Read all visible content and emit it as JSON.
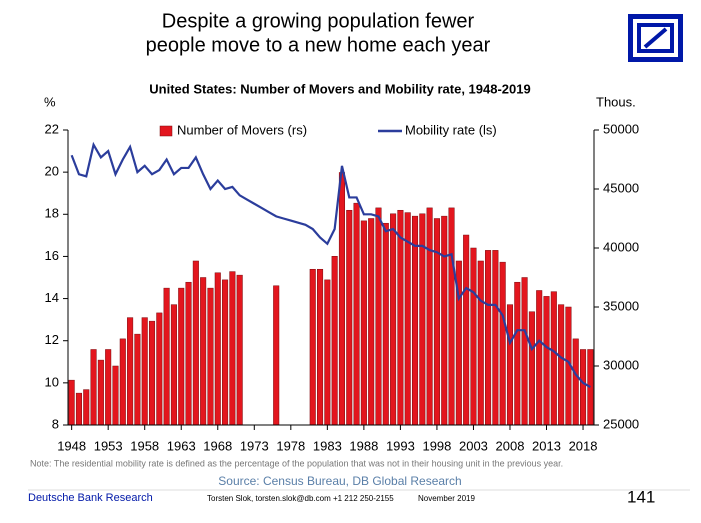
{
  "title_lines": [
    "Despite a growing population fewer",
    "people move to a new home each year"
  ],
  "chart_data": {
    "type": "combo",
    "title": "United States: Number of Movers and Mobility rate, 1948-2019",
    "y_label": "%",
    "y2_label": "Thous.",
    "x": [
      1948,
      1949,
      1950,
      1951,
      1952,
      1953,
      1954,
      1955,
      1956,
      1957,
      1958,
      1959,
      1960,
      1961,
      1962,
      1963,
      1964,
      1965,
      1966,
      1967,
      1968,
      1969,
      1970,
      1971,
      1972,
      1973,
      1974,
      1975,
      1976,
      1977,
      1978,
      1979,
      1980,
      1981,
      1982,
      1983,
      1984,
      1985,
      1986,
      1987,
      1988,
      1989,
      1990,
      1991,
      1992,
      1993,
      1994,
      1995,
      1996,
      1997,
      1998,
      1999,
      2000,
      2001,
      2002,
      2003,
      2004,
      2005,
      2006,
      2007,
      2008,
      2009,
      2010,
      2011,
      2012,
      2013,
      2014,
      2015,
      2016,
      2017,
      2018,
      2019
    ],
    "xlim": [
      1947.5,
      2019.5
    ],
    "xticks": [
      1948,
      1953,
      1958,
      1963,
      1968,
      1973,
      1978,
      1983,
      1988,
      1993,
      1998,
      2003,
      2008,
      2013,
      2018
    ],
    "ylim": [
      8,
      22
    ],
    "yticks": [
      8,
      10,
      12,
      14,
      16,
      18,
      20,
      22
    ],
    "y2lim": [
      25000,
      50000
    ],
    "y2ticks": [
      25000,
      30000,
      35000,
      40000,
      45000,
      50000
    ],
    "legend": "top",
    "series": [
      {
        "name": "Number of Movers (rs)",
        "type": "bar",
        "axis": "y2",
        "color": "#e3161e",
        "values": [
          28800,
          27700,
          28000,
          31400,
          30500,
          31400,
          30000,
          32300,
          34100,
          32700,
          34100,
          33800,
          34500,
          36600,
          35200,
          36600,
          37100,
          38900,
          37500,
          36600,
          37900,
          37300,
          38000,
          37700,
          null,
          null,
          null,
          null,
          36800,
          null,
          null,
          null,
          null,
          38200,
          38200,
          37300,
          39300,
          46400,
          43200,
          43800,
          42300,
          42500,
          43400,
          42100,
          42900,
          43200,
          43000,
          42700,
          42900,
          43400,
          42500,
          42700,
          43400,
          38900,
          41100,
          40000,
          38900,
          39800,
          39800,
          38800,
          35200,
          37100,
          37500,
          34600,
          36400,
          35900,
          36300,
          35200,
          35000,
          32300,
          31400,
          31400
        ]
      },
      {
        "name": "Mobility rate (ls)",
        "type": "line",
        "color": "#2b3d9c",
        "values": [
          20.8,
          19.9,
          19.8,
          21.3,
          20.7,
          21.0,
          19.9,
          20.6,
          21.2,
          20.0,
          20.3,
          19.9,
          20.1,
          20.6,
          19.9,
          20.2,
          20.2,
          20.7,
          19.9,
          19.2,
          19.6,
          19.2,
          19.3,
          18.9,
          18.7,
          18.5,
          18.3,
          18.1,
          17.9,
          17.8,
          17.7,
          17.6,
          17.5,
          17.3,
          16.9,
          16.6,
          17.3,
          20.3,
          18.8,
          18.8,
          18.0,
          18.0,
          17.9,
          17.2,
          17.3,
          16.9,
          16.7,
          16.5,
          16.5,
          16.3,
          16.2,
          16.0,
          16.1,
          14.0,
          14.5,
          14.3,
          13.9,
          13.7,
          13.7,
          13.2,
          11.9,
          12.5,
          12.5,
          11.6,
          12.0,
          11.7,
          11.5,
          11.2,
          11.0,
          10.4,
          10.0,
          9.8
        ]
      }
    ]
  },
  "note": "Note: The residential mobility rate is defined as the percentage of the population that was not in their housing unit in the previous year.",
  "source": "Source: Census Bureau, DB Global Research",
  "footer": {
    "brand": "Deutsche Bank Research",
    "contact": "Torsten Slok, torsten.slok@db.com +1 212 250-2155",
    "date": "November 2019",
    "page": "141"
  }
}
